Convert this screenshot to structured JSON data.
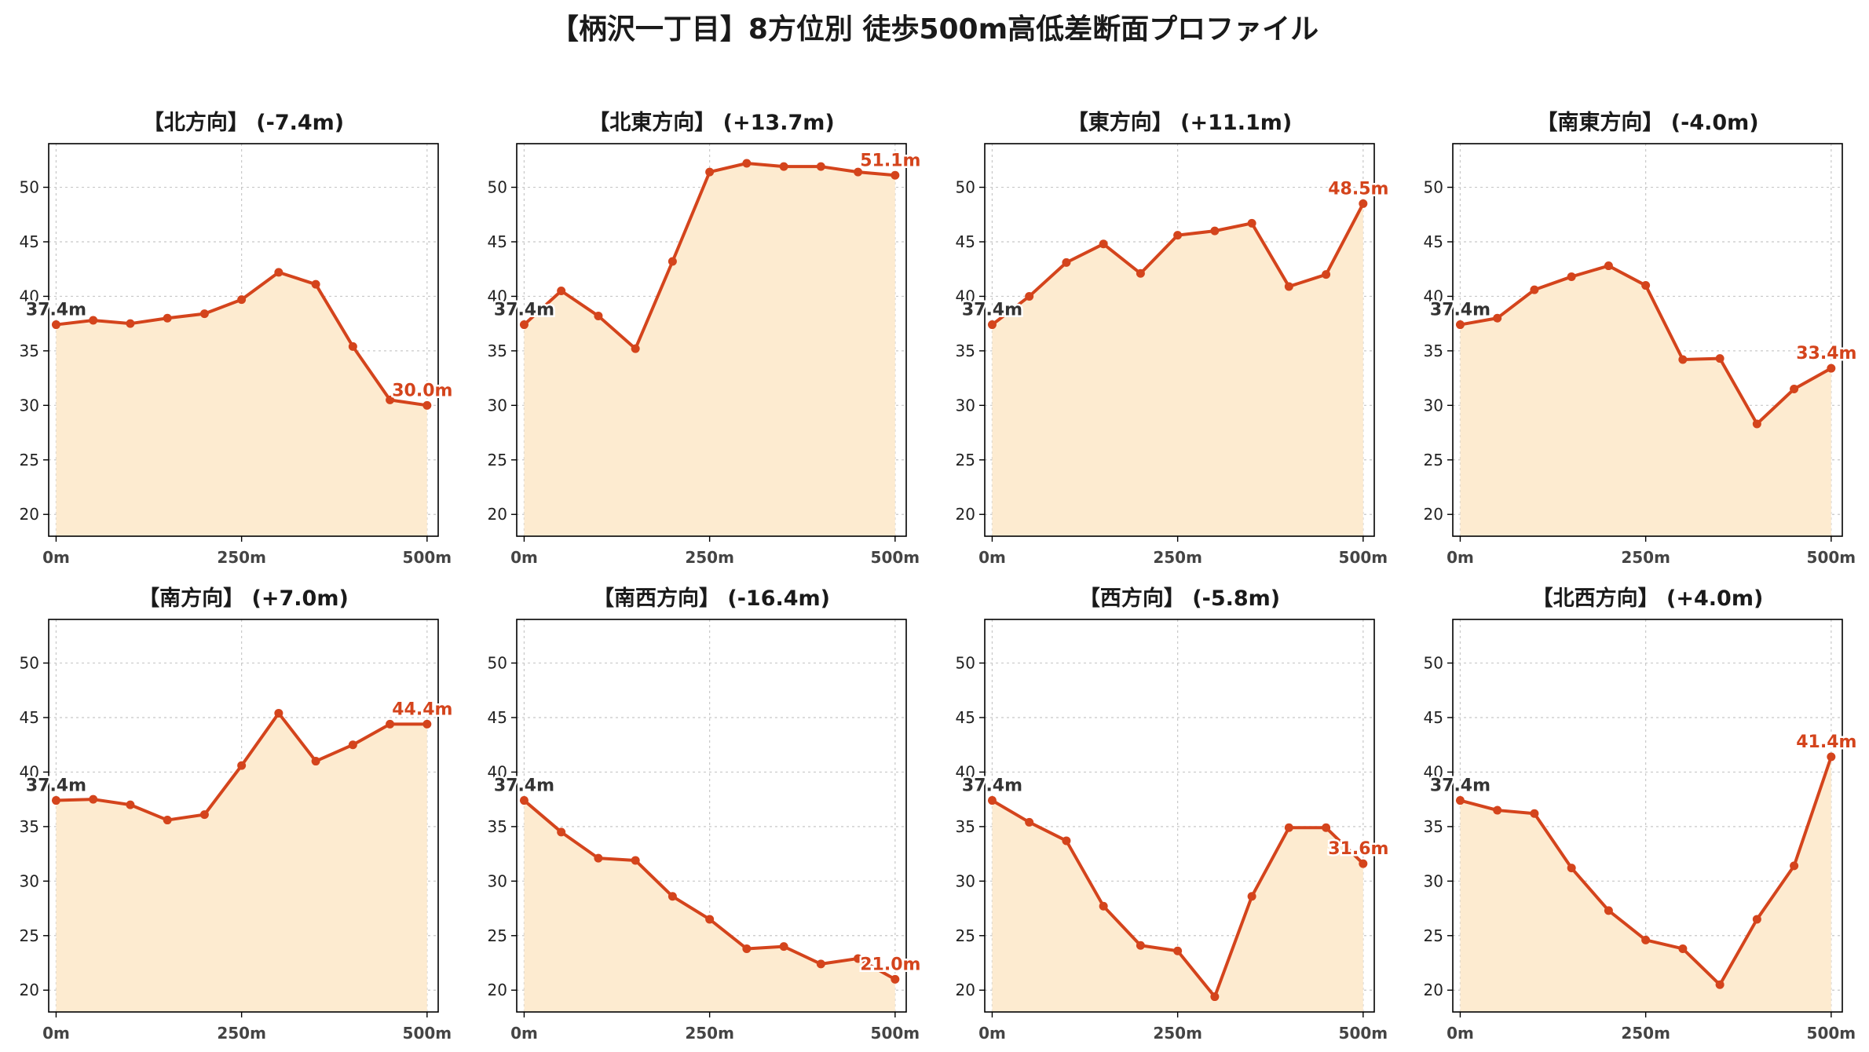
{
  "title": "【柄沢一丁目】8方位別 徒歩500m高低差断面プロファイル",
  "colors": {
    "line": "#d4441c",
    "fill": "#fdebd0",
    "start_label": "#333333",
    "end_label": "#d4441c",
    "grid": "#c8c8c8"
  },
  "chart_data": [
    {
      "type": "area",
      "title": "【北方向】 (-7.4m)",
      "x": [
        0,
        50,
        100,
        150,
        200,
        250,
        300,
        350,
        400,
        450,
        500
      ],
      "values": [
        37.4,
        37.8,
        37.5,
        38.0,
        38.4,
        39.7,
        42.2,
        41.1,
        35.4,
        30.5,
        30.0
      ],
      "start_label": "37.4m",
      "end_label": "30.0m",
      "xticks": [
        "0m",
        "250m",
        "500m"
      ],
      "yticks": [
        20,
        25,
        30,
        35,
        40,
        45,
        50
      ],
      "ylim": [
        18,
        54
      ],
      "xlim": [
        -10,
        515
      ],
      "grid": true
    },
    {
      "type": "area",
      "title": "【北東方向】 (+13.7m)",
      "x": [
        0,
        50,
        100,
        150,
        200,
        250,
        300,
        350,
        400,
        450,
        500
      ],
      "values": [
        37.4,
        40.5,
        38.2,
        35.2,
        43.2,
        51.4,
        52.2,
        51.9,
        51.9,
        51.4,
        51.1
      ],
      "start_label": "37.4m",
      "end_label": "51.1m",
      "xticks": [
        "0m",
        "250m",
        "500m"
      ],
      "yticks": [
        20,
        25,
        30,
        35,
        40,
        45,
        50
      ],
      "ylim": [
        18,
        54
      ],
      "xlim": [
        -10,
        515
      ],
      "grid": true
    },
    {
      "type": "area",
      "title": "【東方向】 (+11.1m)",
      "x": [
        0,
        50,
        100,
        150,
        200,
        250,
        300,
        350,
        400,
        450,
        500
      ],
      "values": [
        37.4,
        40.0,
        43.1,
        44.8,
        42.1,
        45.6,
        46.0,
        46.7,
        40.9,
        42.0,
        48.5
      ],
      "start_label": "37.4m",
      "end_label": "48.5m",
      "xticks": [
        "0m",
        "250m",
        "500m"
      ],
      "yticks": [
        20,
        25,
        30,
        35,
        40,
        45,
        50
      ],
      "ylim": [
        18,
        54
      ],
      "xlim": [
        -10,
        515
      ],
      "grid": true
    },
    {
      "type": "area",
      "title": "【南東方向】 (-4.0m)",
      "x": [
        0,
        50,
        100,
        150,
        200,
        250,
        300,
        350,
        400,
        450,
        500
      ],
      "values": [
        37.4,
        38.0,
        40.6,
        41.8,
        42.8,
        41.0,
        34.2,
        34.3,
        28.3,
        31.5,
        33.4
      ],
      "start_label": "37.4m",
      "end_label": "33.4m",
      "xticks": [
        "0m",
        "250m",
        "500m"
      ],
      "yticks": [
        20,
        25,
        30,
        35,
        40,
        45,
        50
      ],
      "ylim": [
        18,
        54
      ],
      "xlim": [
        -10,
        515
      ],
      "grid": true
    },
    {
      "type": "area",
      "title": "【南方向】 (+7.0m)",
      "x": [
        0,
        50,
        100,
        150,
        200,
        250,
        300,
        350,
        400,
        450,
        500
      ],
      "values": [
        37.4,
        37.5,
        37.0,
        35.6,
        36.1,
        40.6,
        45.4,
        41.0,
        42.5,
        44.4,
        44.4
      ],
      "start_label": "37.4m",
      "end_label": "44.4m",
      "xticks": [
        "0m",
        "250m",
        "500m"
      ],
      "yticks": [
        20,
        25,
        30,
        35,
        40,
        45,
        50
      ],
      "ylim": [
        18,
        54
      ],
      "xlim": [
        -10,
        515
      ],
      "grid": true
    },
    {
      "type": "area",
      "title": "【南西方向】 (-16.4m)",
      "x": [
        0,
        50,
        100,
        150,
        200,
        250,
        300,
        350,
        400,
        450,
        500
      ],
      "values": [
        37.4,
        34.5,
        32.1,
        31.9,
        28.6,
        26.5,
        23.8,
        24.0,
        22.4,
        22.9,
        21.0
      ],
      "start_label": "37.4m",
      "end_label": "21.0m",
      "xticks": [
        "0m",
        "250m",
        "500m"
      ],
      "yticks": [
        20,
        25,
        30,
        35,
        40,
        45,
        50
      ],
      "ylim": [
        18,
        54
      ],
      "xlim": [
        -10,
        515
      ],
      "grid": true
    },
    {
      "type": "area",
      "title": "【西方向】 (-5.8m)",
      "x": [
        0,
        50,
        100,
        150,
        200,
        250,
        300,
        350,
        400,
        450,
        500
      ],
      "values": [
        37.4,
        35.4,
        33.7,
        27.7,
        24.1,
        23.6,
        19.4,
        28.6,
        34.9,
        34.9,
        31.6
      ],
      "start_label": "37.4m",
      "end_label": "31.6m",
      "xticks": [
        "0m",
        "250m",
        "500m"
      ],
      "yticks": [
        20,
        25,
        30,
        35,
        40,
        45,
        50
      ],
      "ylim": [
        18,
        54
      ],
      "xlim": [
        -10,
        515
      ],
      "grid": true
    },
    {
      "type": "area",
      "title": "【北西方向】 (+4.0m)",
      "x": [
        0,
        50,
        100,
        150,
        200,
        250,
        300,
        350,
        400,
        450,
        500
      ],
      "values": [
        37.4,
        36.5,
        36.2,
        31.2,
        27.3,
        24.6,
        23.8,
        20.5,
        26.5,
        31.4,
        41.4
      ],
      "start_label": "37.4m",
      "end_label": "41.4m",
      "xticks": [
        "0m",
        "250m",
        "500m"
      ],
      "yticks": [
        20,
        25,
        30,
        35,
        40,
        45,
        50
      ],
      "ylim": [
        18,
        54
      ],
      "xlim": [
        -10,
        515
      ],
      "grid": true
    }
  ]
}
